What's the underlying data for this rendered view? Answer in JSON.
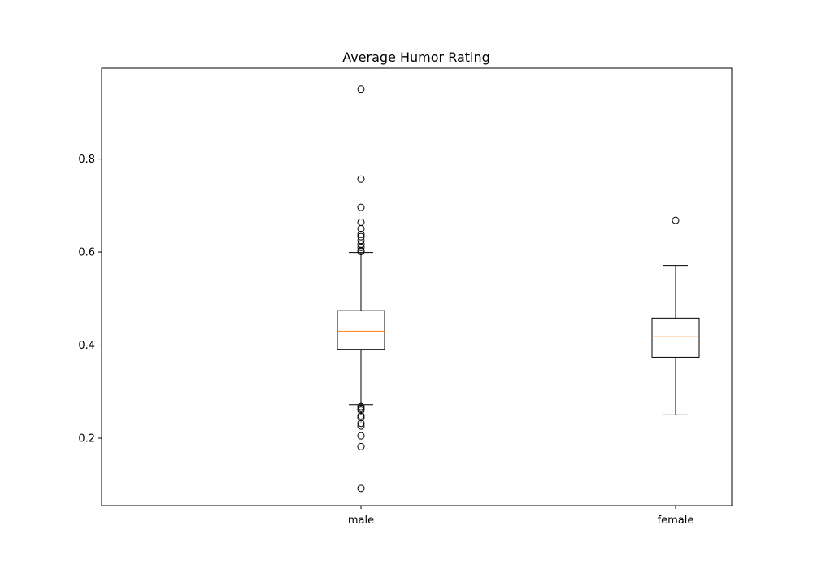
{
  "chart_data": {
    "type": "box",
    "title": "Average Humor Rating",
    "xlabel": "",
    "ylabel": "",
    "ylim": [
      0.055,
      0.995
    ],
    "yticks": [
      0.2,
      0.4,
      0.6,
      0.8
    ],
    "grid": false,
    "median_color": "#ff7f0e",
    "box_color": "#000000",
    "categories": [
      "male",
      "female"
    ],
    "boxes": [
      {
        "category": "male",
        "whisker_low": 0.272,
        "q1": 0.391,
        "median": 0.43,
        "q3": 0.474,
        "whisker_high": 0.599,
        "outliers": [
          0.95,
          0.757,
          0.696,
          0.664,
          0.65,
          0.638,
          0.633,
          0.625,
          0.617,
          0.61,
          0.603,
          0.601,
          0.268,
          0.264,
          0.26,
          0.248,
          0.244,
          0.232,
          0.226,
          0.205,
          0.182,
          0.092
        ]
      },
      {
        "category": "female",
        "whisker_low": 0.25,
        "q1": 0.374,
        "median": 0.418,
        "q3": 0.458,
        "whisker_high": 0.571,
        "outliers": [
          0.668
        ]
      }
    ]
  }
}
